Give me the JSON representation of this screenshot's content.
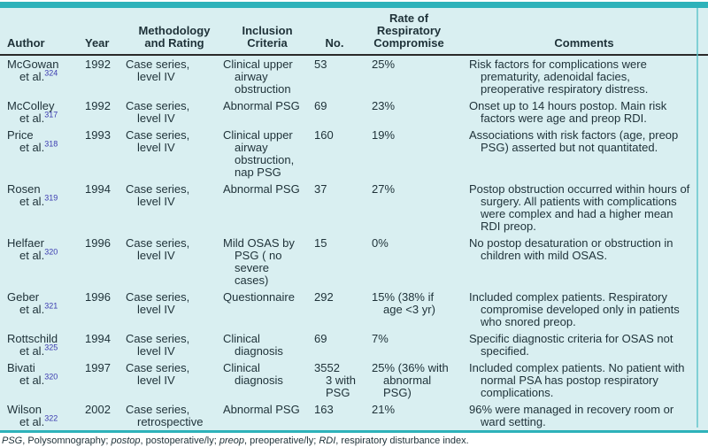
{
  "page": {
    "background": "#ffffff",
    "table_background": "#d9eff1",
    "accent_teal": "#2eb2ba",
    "header_rule_color": "#2a2a2a",
    "reference_color": "#3b3bb0",
    "text_color": "#1e3138"
  },
  "table": {
    "columns": [
      {
        "key": "author",
        "label": "Author"
      },
      {
        "key": "year",
        "label": "Year"
      },
      {
        "key": "methodology",
        "label": "Methodology\nand Rating"
      },
      {
        "key": "inclusion",
        "label": "Inclusion\nCriteria"
      },
      {
        "key": "no",
        "label": "No."
      },
      {
        "key": "rate",
        "label": "Rate of\nRespiratory\nCompromise"
      },
      {
        "key": "comments",
        "label": "Comments"
      }
    ],
    "rows": [
      {
        "author": "McGowan",
        "ref": "324",
        "year": "1992",
        "methodology": "Case series,\nlevel IV",
        "inclusion": "Clinical upper\nairway\nobstruction",
        "no": "53",
        "rate": "25%",
        "comments": "Risk factors for complications were prematurity, adenoidal facies, preoperative respiratory distress."
      },
      {
        "author": "McColley",
        "ref": "317",
        "year": "1992",
        "methodology": "Case series,\nlevel IV",
        "inclusion": "Abnormal PSG",
        "no": "69",
        "rate": "23%",
        "comments": "Onset up to 14 hours postop. Main risk factors were age and preop RDI."
      },
      {
        "author": "Price",
        "ref": "318",
        "year": "1993",
        "methodology": "Case series,\nlevel IV",
        "inclusion": "Clinical upper\nairway\nobstruction,\nnap PSG",
        "no": "160",
        "rate": "19%",
        "comments": "Associations with risk factors (age, preop PSG) asserted but not quantitated."
      },
      {
        "author": "Rosen",
        "ref": "319",
        "year": "1994",
        "methodology": "Case series,\nlevel IV",
        "inclusion": "Abnormal PSG",
        "no": "37",
        "rate": "27%",
        "comments": "Postop obstruction occurred within hours of surgery. All patients with complications were complex and had a higher mean RDI preop."
      },
      {
        "author": "Helfaer",
        "ref": "320",
        "year": "1996",
        "methodology": "Case series,\nlevel IV",
        "inclusion": "Mild OSAS by\nPSG ( no\nsevere\ncases)",
        "no": "15",
        "rate": "0%",
        "comments": "No postop desaturation or obstruction in children with mild OSAS."
      },
      {
        "author": "Geber",
        "ref": "321",
        "year": "1996",
        "methodology": "Case series,\nlevel IV",
        "inclusion": "Questionnaire",
        "no": "292",
        "rate": "15% (38% if\nage <3 yr)",
        "comments": "Included complex patients. Respiratory compromise developed only in patients who snored preop."
      },
      {
        "author": "Rottschild",
        "ref": "325",
        "year": "1994",
        "methodology": "Case series,\nlevel IV",
        "inclusion": "Clinical\ndiagnosis",
        "no": "69",
        "rate": "7%",
        "comments": "Specific diagnostic criteria for OSAS not specified."
      },
      {
        "author": "Bivati",
        "ref": "320",
        "year": "1997",
        "methodology": "Case series,\nlevel IV",
        "inclusion": "Clinical\ndiagnosis",
        "no": "3552\n3 with\nPSG",
        "rate": "25% (36% with\nabnormal\nPSG)",
        "comments": "Included complex patients. No patient with normal PSA has postop respiratory complications."
      },
      {
        "author": "Wilson",
        "ref": "322",
        "year": "2002",
        "methodology": "Case series,\nretrospective",
        "inclusion": "Abnormal PSG",
        "no": "163",
        "rate": "21%",
        "comments": "96% were managed in recovery room or ward setting."
      }
    ]
  },
  "footnote": {
    "segments": [
      {
        "text": "PSG",
        "italic": true
      },
      {
        "text": ", Polysomnography; ",
        "italic": false
      },
      {
        "text": "postop",
        "italic": true
      },
      {
        "text": ", postoperative/ly; ",
        "italic": false
      },
      {
        "text": "preop",
        "italic": true
      },
      {
        "text": ", preoperative/ly; ",
        "italic": false
      },
      {
        "text": "RDI",
        "italic": true
      },
      {
        "text": ", respiratory disturbance index.",
        "italic": false
      }
    ]
  }
}
